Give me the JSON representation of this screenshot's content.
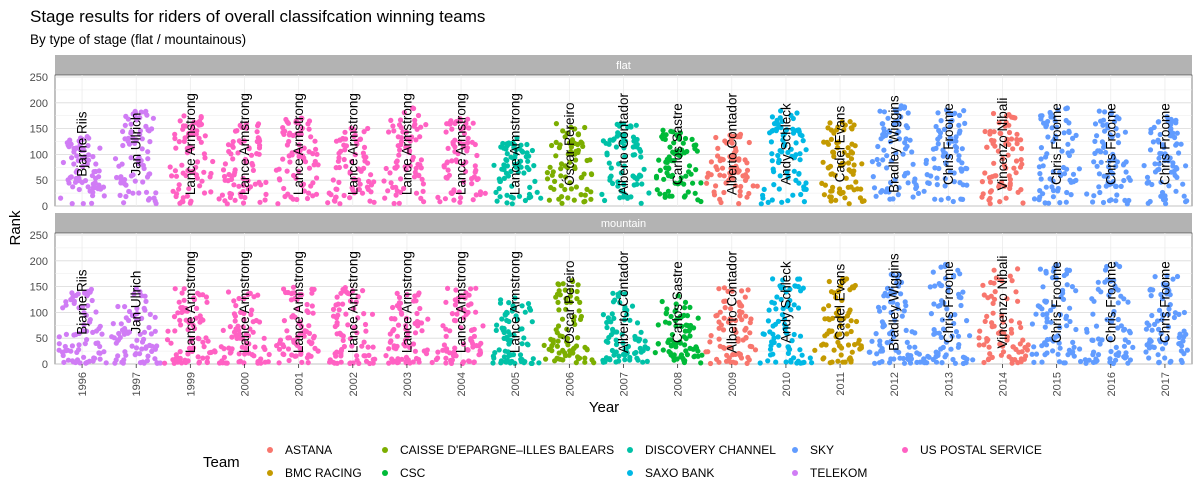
{
  "chart_data": {
    "type": "scatter",
    "title": "Stage results for riders of overall classifcation winning teams",
    "subtitle": "By type of stage (flat / mountainous)",
    "xlabel": "Year",
    "ylabel": "Rank",
    "ylim": [
      0,
      250
    ],
    "y_ticks": [
      0,
      50,
      100,
      150,
      200,
      250
    ],
    "grid": true,
    "legend_position": "bottom",
    "legend_title": "Team",
    "facets": [
      "flat",
      "mountain"
    ],
    "years": [
      "1996",
      "1997",
      "1999",
      "2000",
      "2001",
      "2002",
      "2003",
      "2004",
      "2005",
      "2006",
      "2007",
      "2008",
      "2009",
      "2010",
      "2011",
      "2012",
      "2013",
      "2014",
      "2015",
      "2016",
      "2017"
    ],
    "teams": [
      {
        "name": "ASTANA",
        "color": "#F8766D"
      },
      {
        "name": "BMC RACING",
        "color": "#C49A00"
      },
      {
        "name": "CAISSE D'EPARGNE–ILLES BALEARS",
        "color": "#7CAE00"
      },
      {
        "name": "CSC",
        "color": "#00BA38"
      },
      {
        "name": "DISCOVERY CHANNEL",
        "color": "#00C1A7"
      },
      {
        "name": "SAXO BANK",
        "color": "#00B8E5"
      },
      {
        "name": "SKY",
        "color": "#619CFF"
      },
      {
        "name": "TELEKOM",
        "color": "#D07CF5"
      },
      {
        "name": "US POSTAL SERVICE",
        "color": "#FF61C3"
      }
    ],
    "groups": [
      {
        "year": "1996",
        "rider": "Bjarne Riis",
        "team": "TELEKOM",
        "flat_max": 135,
        "mountain_max": 145
      },
      {
        "year": "1997",
        "rider": "Jan Ullrich",
        "team": "TELEKOM",
        "flat_max": 185,
        "mountain_max": 155
      },
      {
        "year": "1999",
        "rider": "Lance Armstrong",
        "team": "US POSTAL SERVICE",
        "flat_max": 175,
        "mountain_max": 150
      },
      {
        "year": "2000",
        "rider": "Lance Armstrong",
        "team": "US POSTAL SERVICE",
        "flat_max": 170,
        "mountain_max": 140
      },
      {
        "year": "2001",
        "rider": "Lance Armstrong",
        "team": "US POSTAL SERVICE",
        "flat_max": 175,
        "mountain_max": 150
      },
      {
        "year": "2002",
        "rider": "Lance Armstrong",
        "team": "US POSTAL SERVICE",
        "flat_max": 155,
        "mountain_max": 150
      },
      {
        "year": "2003",
        "rider": "Lance Armstrong",
        "team": "US POSTAL SERVICE",
        "flat_max": 190,
        "mountain_max": 140
      },
      {
        "year": "2004",
        "rider": "Lance Armstrong",
        "team": "US POSTAL SERVICE",
        "flat_max": 170,
        "mountain_max": 150
      },
      {
        "year": "2005",
        "rider": "Lance Armstrong",
        "team": "DISCOVERY CHANNEL",
        "flat_max": 135,
        "mountain_max": 130
      },
      {
        "year": "2006",
        "rider": "Óscar Pereiro",
        "team": "CAISSE D'EPARGNE–ILLES BALEARS",
        "flat_max": 160,
        "mountain_max": 165
      },
      {
        "year": "2007",
        "rider": "Alberto Contador",
        "team": "DISCOVERY CHANNEL",
        "flat_max": 160,
        "mountain_max": 140
      },
      {
        "year": "2008",
        "rider": "Carlos Sastre",
        "team": "CSC",
        "flat_max": 150,
        "mountain_max": 135
      },
      {
        "year": "2009",
        "rider": "Alberto Contador",
        "team": "ASTANA",
        "flat_max": 140,
        "mountain_max": 150
      },
      {
        "year": "2010",
        "rider": "Andy Schleck",
        "team": "SAXO BANK",
        "flat_max": 185,
        "mountain_max": 170
      },
      {
        "year": "2011",
        "rider": "Cadel Evans",
        "team": "BMC RACING",
        "flat_max": 170,
        "mountain_max": 165
      },
      {
        "year": "2012",
        "rider": "Bradley Wiggins",
        "team": "SKY",
        "flat_max": 195,
        "mountain_max": 175
      },
      {
        "year": "2013",
        "rider": "Chris Froome",
        "team": "SKY",
        "flat_max": 190,
        "mountain_max": 195
      },
      {
        "year": "2014",
        "rider": "Vincenzo Nibali",
        "team": "ASTANA",
        "flat_max": 180,
        "mountain_max": 190
      },
      {
        "year": "2015",
        "rider": "Chris Froome",
        "team": "SKY",
        "flat_max": 190,
        "mountain_max": 195
      },
      {
        "year": "2016",
        "rider": "Chris Froome",
        "team": "SKY",
        "flat_max": 190,
        "mountain_max": 195
      },
      {
        "year": "2017",
        "rider": "Chris Froome",
        "team": "SKY",
        "flat_max": 175,
        "mountain_max": 175
      }
    ]
  }
}
